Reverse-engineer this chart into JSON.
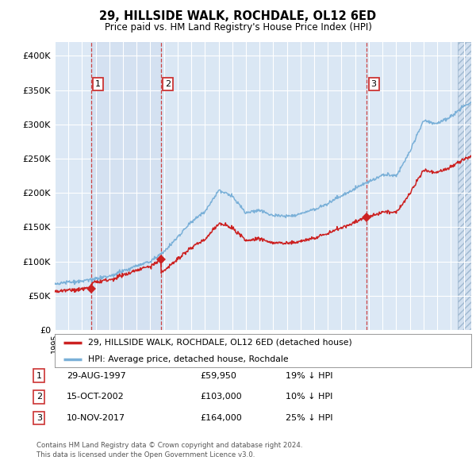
{
  "title": "29, HILLSIDE WALK, ROCHDALE, OL12 6ED",
  "subtitle": "Price paid vs. HM Land Registry's House Price Index (HPI)",
  "plot_bg_color": "#dce8f5",
  "ylim": [
    0,
    420000
  ],
  "yticks": [
    0,
    50000,
    100000,
    150000,
    200000,
    250000,
    300000,
    350000,
    400000
  ],
  "ytick_labels": [
    "£0",
    "£50K",
    "£100K",
    "£150K",
    "£200K",
    "£250K",
    "£300K",
    "£350K",
    "£400K"
  ],
  "x_start_year": 1995.0,
  "x_end_year": 2025.5,
  "sale_dates": [
    1997.66,
    2002.79,
    2017.86
  ],
  "sale_prices": [
    59950,
    103000,
    164000
  ],
  "sale_labels": [
    "1",
    "2",
    "3"
  ],
  "hpi_control_x": [
    1995,
    1996,
    1997,
    1998,
    1999,
    2000,
    2001,
    2002,
    2003,
    2004,
    2005,
    2006,
    2007,
    2008,
    2009,
    2010,
    2011,
    2012,
    2013,
    2014,
    2015,
    2016,
    2017,
    2018,
    2019,
    2020,
    2021,
    2022,
    2023,
    2024,
    2025,
    2025.5
  ],
  "hpi_control_y": [
    68000,
    70000,
    72000,
    75000,
    80000,
    88000,
    95000,
    103000,
    118000,
    140000,
    163000,
    178000,
    210000,
    200000,
    175000,
    178000,
    172000,
    170000,
    174000,
    180000,
    190000,
    200000,
    210000,
    220000,
    230000,
    230000,
    265000,
    310000,
    305000,
    315000,
    330000,
    335000
  ],
  "legend_line1": "29, HILLSIDE WALK, ROCHDALE, OL12 6ED (detached house)",
  "legend_line2": "HPI: Average price, detached house, Rochdale",
  "table_rows": [
    [
      "1",
      "29-AUG-1997",
      "£59,950",
      "19% ↓ HPI"
    ],
    [
      "2",
      "15-OCT-2002",
      "£103,000",
      "10% ↓ HPI"
    ],
    [
      "3",
      "10-NOV-2017",
      "£164,000",
      "25% ↓ HPI"
    ]
  ],
  "footnote1": "Contains HM Land Registry data © Crown copyright and database right 2024.",
  "footnote2": "This data is licensed under the Open Government Licence v3.0.",
  "red_color": "#cc2222",
  "blue_color": "#7ab0d8",
  "dashed_red": "#cc4444",
  "shade_colors": [
    "#cddcee",
    "#d8e5f2"
  ]
}
